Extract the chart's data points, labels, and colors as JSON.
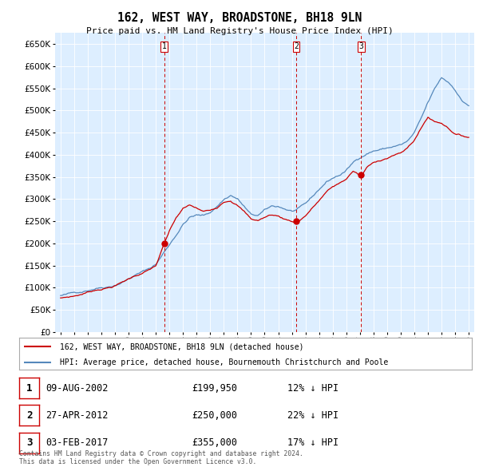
{
  "title": "162, WEST WAY, BROADSTONE, BH18 9LN",
  "subtitle": "Price paid vs. HM Land Registry's House Price Index (HPI)",
  "ylim": [
    0,
    675000
  ],
  "yticks": [
    0,
    50000,
    100000,
    150000,
    200000,
    250000,
    300000,
    350000,
    400000,
    450000,
    500000,
    550000,
    600000,
    650000
  ],
  "sale_year_floats": [
    2002.6139,
    2012.3222,
    2017.0889
  ],
  "sale_prices": [
    199950,
    250000,
    355000
  ],
  "sale_labels": [
    "1",
    "2",
    "3"
  ],
  "legend_line1": "162, WEST WAY, BROADSTONE, BH18 9LN (detached house)",
  "legend_line2": "HPI: Average price, detached house, Bournemouth Christchurch and Poole",
  "table_rows": [
    [
      "1",
      "09-AUG-2002",
      "£199,950",
      "12% ↓ HPI"
    ],
    [
      "2",
      "27-APR-2012",
      "£250,000",
      "22% ↓ HPI"
    ],
    [
      "3",
      "03-FEB-2017",
      "£355,000",
      "17% ↓ HPI"
    ]
  ],
  "footnote1": "Contains HM Land Registry data © Crown copyright and database right 2024.",
  "footnote2": "This data is licensed under the Open Government Licence v3.0.",
  "line_color_sales": "#cc0000",
  "line_color_hpi": "#5588bb",
  "vline_color": "#cc0000",
  "plot_bg": "#ddeeff"
}
